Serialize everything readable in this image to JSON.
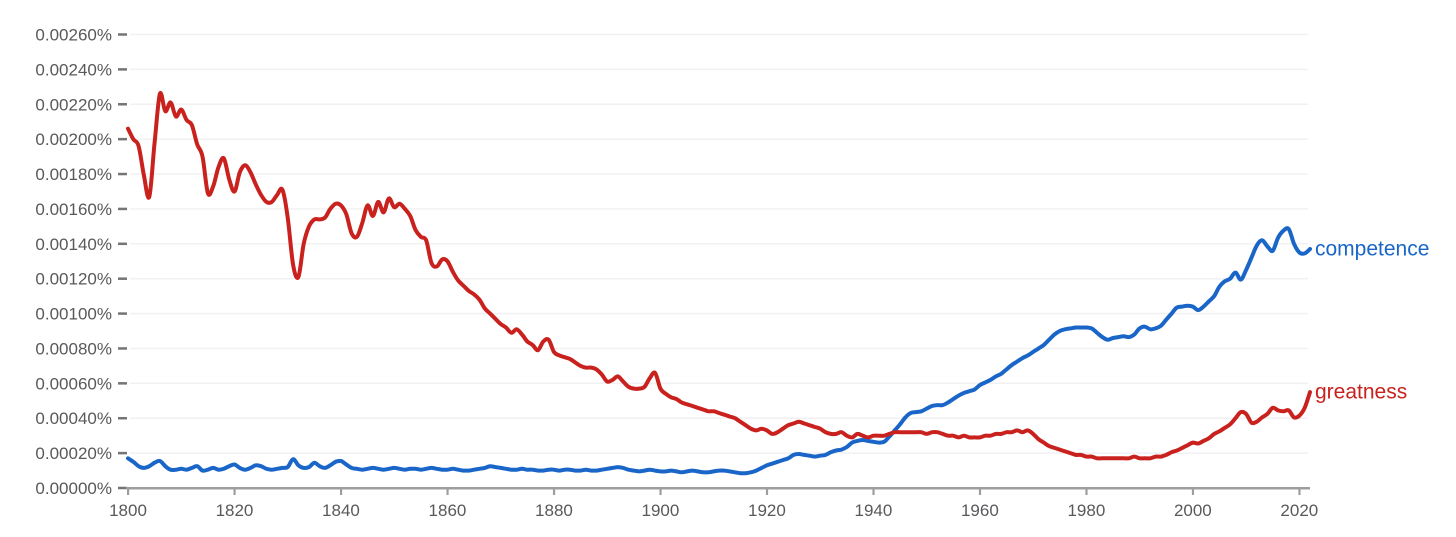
{
  "chart_data": {
    "type": "line",
    "title": "",
    "xlabel": "",
    "ylabel": "",
    "value_unit": "1e-5 percent (value 206 = 0.00206%)",
    "xlim": [
      1800,
      2022
    ],
    "ylim": [
      0,
      260
    ],
    "grid": true,
    "legend_position": "end-of-line labels, right side",
    "x_ticks": [
      1800,
      1820,
      1840,
      1860,
      1880,
      1900,
      1920,
      1940,
      1960,
      1980,
      2000,
      2020
    ],
    "y_ticks": [
      {
        "value": 0,
        "label": "0.00000%"
      },
      {
        "value": 20,
        "label": "0.00020%"
      },
      {
        "value": 40,
        "label": "0.00040%"
      },
      {
        "value": 60,
        "label": "0.00060%"
      },
      {
        "value": 80,
        "label": "0.00080%"
      },
      {
        "value": 100,
        "label": "0.00100%"
      },
      {
        "value": 120,
        "label": "0.00120%"
      },
      {
        "value": 140,
        "label": "0.00140%"
      },
      {
        "value": 160,
        "label": "0.00160%"
      },
      {
        "value": 180,
        "label": "0.00180%"
      },
      {
        "value": 200,
        "label": "0.00200%"
      },
      {
        "value": 220,
        "label": "0.00220%"
      },
      {
        "value": 240,
        "label": "0.00240%"
      },
      {
        "value": 260,
        "label": "0.00260%"
      }
    ],
    "colors": {
      "axis_line": "#9e9e9e",
      "tick_dash": "#757575",
      "gridline": "#f1f1f3",
      "tick_label": "#58595b"
    },
    "years_start": 1800,
    "years_end": 2022,
    "series": [
      {
        "name": "competence",
        "color": "#1a66c8",
        "values": [
          17,
          15,
          12.5,
          11.5,
          12.5,
          14.5,
          15.5,
          12.5,
          10.5,
          10.5,
          11,
          10.5,
          11.5,
          12.5,
          10,
          10.5,
          11.5,
          10.5,
          11,
          12.5,
          13.5,
          11.5,
          10.5,
          11.5,
          13,
          12.5,
          11,
          10.5,
          11,
          11.5,
          12,
          16.5,
          13,
          11.5,
          12,
          14.5,
          12.5,
          11.5,
          13,
          15,
          15.5,
          13.5,
          11.5,
          11,
          10.5,
          11,
          11.5,
          11,
          10.5,
          11,
          11.5,
          11,
          10.5,
          11,
          11,
          10.5,
          11,
          11.5,
          11,
          10.5,
          10.5,
          11,
          10.5,
          10,
          10,
          10.5,
          11,
          11.5,
          12.5,
          12,
          11.5,
          11,
          10.5,
          10.5,
          11,
          10.5,
          10.5,
          10,
          10,
          10.5,
          10.5,
          10,
          10.5,
          10.5,
          10,
          10,
          10.5,
          10,
          10,
          10.5,
          11,
          11.5,
          12,
          11.5,
          10.5,
          10,
          9.5,
          10,
          10.5,
          10,
          9.5,
          9.5,
          10,
          9.5,
          9,
          9.5,
          10,
          9.5,
          9,
          9,
          9.5,
          10,
          10,
          9.5,
          9,
          8.5,
          8.5,
          9,
          10,
          11.5,
          13,
          14,
          15,
          16,
          17,
          19,
          19.5,
          19,
          18.5,
          18,
          18.5,
          19,
          20.5,
          21.5,
          22,
          23.5,
          26,
          27,
          27.5,
          27,
          26.5,
          26,
          26.5,
          29.5,
          33,
          36.5,
          40.5,
          43,
          43.5,
          44,
          45.5,
          47,
          47.5,
          47.5,
          49,
          51,
          53,
          54.5,
          55.5,
          56.5,
          59,
          60.5,
          62,
          64,
          65.5,
          68,
          70.5,
          72.5,
          74.5,
          76,
          78,
          80,
          82,
          85,
          88,
          90,
          91,
          91.5,
          92,
          92,
          92,
          91.5,
          89,
          86.5,
          85,
          86,
          86.5,
          87,
          86.5,
          88,
          91.5,
          92.5,
          91,
          91.5,
          93,
          96.5,
          100,
          103.5,
          104,
          104.5,
          104,
          102,
          104,
          107,
          110,
          115.5,
          118.5,
          120,
          123.5,
          119.5,
          125,
          132,
          139,
          142,
          138.5,
          136,
          143.5,
          147.5,
          148.5,
          140,
          135,
          134.5,
          137
        ]
      },
      {
        "name": "greatness",
        "color": "#c9221e",
        "values": [
          206,
          200,
          196,
          179,
          167,
          198,
          226,
          216,
          221,
          213,
          217,
          211,
          208,
          197,
          190,
          169,
          173,
          184,
          189,
          177,
          170,
          181,
          185,
          181,
          174,
          168,
          164,
          164,
          168,
          171,
          155,
          128,
          121,
          140,
          150,
          154,
          154,
          155,
          160,
          163,
          162,
          157,
          146,
          144,
          152,
          162,
          156,
          164,
          158,
          166,
          161,
          163,
          160,
          156,
          148,
          144,
          142,
          129,
          127,
          131,
          130,
          124,
          119,
          116,
          113,
          111,
          108,
          103,
          100,
          97,
          94,
          92,
          89,
          91,
          88,
          84,
          82,
          79,
          84,
          85,
          78,
          76,
          75,
          74,
          72,
          70,
          69,
          69,
          68,
          65,
          61,
          62,
          64,
          61,
          58,
          57,
          57,
          58,
          63,
          66,
          57,
          54,
          52,
          51,
          49,
          48,
          47,
          46,
          45,
          44,
          44,
          43,
          42,
          41,
          40,
          38,
          36,
          34,
          33,
          34,
          33,
          31,
          32,
          34,
          36,
          37,
          38,
          37,
          36,
          35,
          34,
          32,
          31,
          31,
          32,
          30,
          29,
          31,
          30,
          29,
          30,
          30,
          30,
          31,
          32,
          32,
          32,
          32,
          32,
          32,
          31,
          32,
          32,
          31,
          30,
          30,
          29,
          30,
          29,
          29,
          29,
          30,
          30,
          31,
          31,
          32,
          32,
          33,
          32,
          33,
          31,
          28,
          26,
          24,
          23,
          22,
          21,
          20,
          19,
          19,
          18,
          18,
          17,
          17,
          17,
          17,
          17,
          17,
          17,
          18,
          17,
          17,
          17,
          18,
          18,
          19,
          20.5,
          21.5,
          23,
          24.5,
          26,
          25.5,
          27,
          28.5,
          31,
          32.5,
          34.5,
          36.5,
          40,
          43.5,
          42.5,
          37.5,
          38,
          40.5,
          42.5,
          46,
          44.5,
          44,
          44.5,
          40.5,
          41.5,
          46,
          55
        ]
      }
    ]
  }
}
